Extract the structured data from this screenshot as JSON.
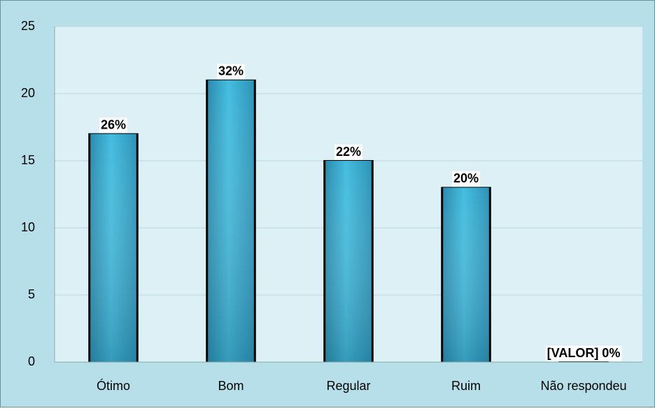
{
  "chart_data": {
    "type": "bar",
    "categories": [
      "Ótimo",
      "Bom",
      "Regular",
      "Ruim",
      "Não respondeu"
    ],
    "values": [
      17,
      21,
      15,
      13,
      0
    ],
    "value_labels": [
      "26%",
      "32%",
      "22%",
      "20%",
      "[VALOR] 0%"
    ],
    "color": "#3bb3d6",
    "ylim": [
      0,
      25
    ],
    "yticks": [
      0,
      5,
      10,
      15,
      20,
      25
    ],
    "grid": true
  }
}
